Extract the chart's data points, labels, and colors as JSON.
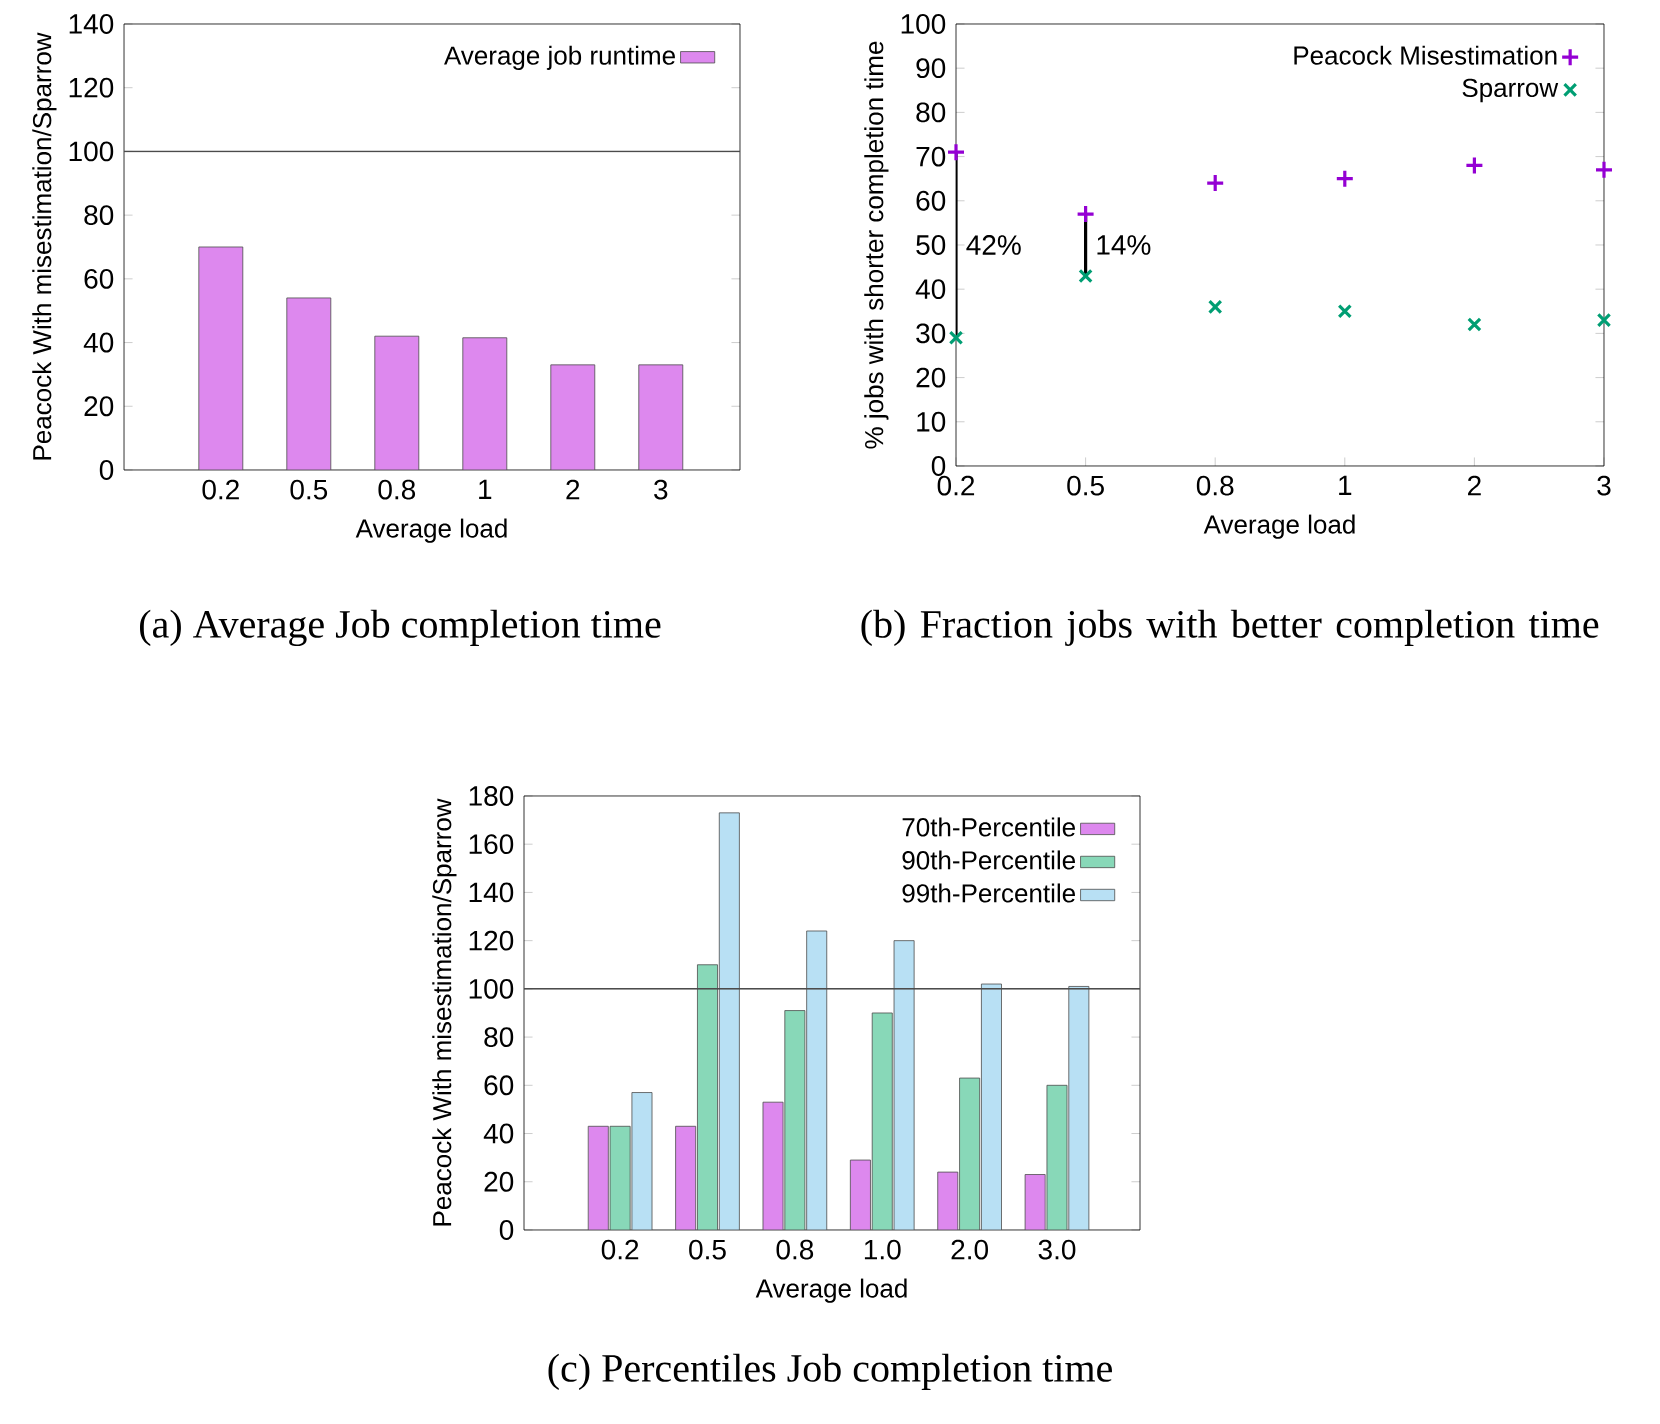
{
  "chart_data": [
    {
      "type": "bar",
      "categories": [
        "0.2",
        "0.5",
        "0.8",
        "1",
        "2",
        "3"
      ],
      "xlabel": "Average load",
      "ylabel": "Peacock With misestimation/Sparrow",
      "series": [
        {
          "name": "Average job runtime",
          "color": "#dd88ee",
          "values": [
            70,
            54,
            42,
            41.5,
            33,
            33
          ]
        }
      ],
      "ylim": [
        0,
        140
      ],
      "yticks": [
        0,
        20,
        40,
        60,
        80,
        100,
        120,
        140
      ],
      "ref_lines": [
        {
          "axis": "y",
          "value": 100
        }
      ],
      "legend": "top right",
      "annotations": [
        "(a)  Average Job completion time"
      ]
    },
    {
      "type": "scatter",
      "categories": [
        "0.2",
        "0.5",
        "0.8",
        "1",
        "2",
        "3"
      ],
      "xlabel": "Average load",
      "ylabel": "% jobs with shorter completion time",
      "series": [
        {
          "name": "Peacock Misestimation",
          "color": "#9400d3",
          "marker": "plus",
          "values": [
            71,
            57,
            64,
            65,
            68,
            67
          ]
        },
        {
          "name": "Sparrow",
          "color": "#009e73",
          "marker": "cross",
          "values": [
            29,
            43,
            36,
            35,
            32,
            33
          ]
        }
      ],
      "ylim": [
        0,
        100
      ],
      "yticks": [
        0,
        10,
        20,
        30,
        40,
        50,
        60,
        70,
        80,
        90,
        100
      ],
      "legend": "top right",
      "annotations": [
        "(b)  Fraction jobs with better completion time",
        "42%",
        "14%"
      ]
    },
    {
      "type": "bar",
      "categories": [
        "0.2",
        "0.5",
        "0.8",
        "1.0",
        "2.0",
        "3.0"
      ],
      "xlabel": "Average load",
      "ylabel": "Peacock With misestimation/Sparrow",
      "series": [
        {
          "name": "70th-Percentile",
          "color": "#dd88ee",
          "values": [
            43,
            43,
            53,
            29,
            24,
            23
          ]
        },
        {
          "name": "90th-Percentile",
          "color": "#88d8b8",
          "values": [
            43,
            110,
            91,
            90,
            63,
            60
          ]
        },
        {
          "name": "99th-Percentile",
          "color": "#b8e0f4",
          "values": [
            57,
            173,
            124,
            120,
            102,
            101
          ]
        }
      ],
      "ylim": [
        0,
        180
      ],
      "yticks": [
        0,
        20,
        40,
        60,
        80,
        100,
        120,
        140,
        160,
        180
      ],
      "ref_lines": [
        {
          "axis": "y",
          "value": 100
        }
      ],
      "legend": "top right",
      "annotations": [
        "(c)  Percentiles Job completion time"
      ]
    }
  ]
}
